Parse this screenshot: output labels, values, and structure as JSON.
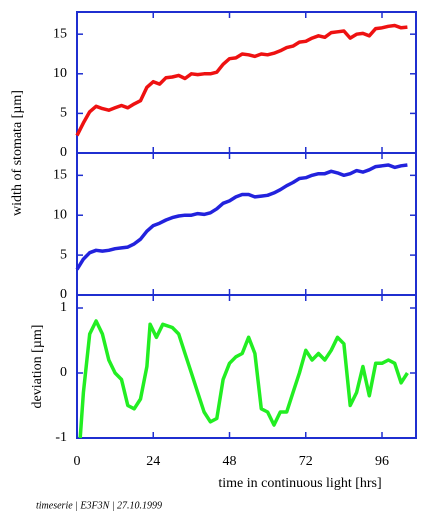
{
  "chart_data": [
    {
      "type": "line",
      "ylabel": "width of stomata [µm]",
      "color": "#ee1111",
      "x": [
        0,
        2,
        4,
        6,
        8,
        10,
        12,
        14,
        16,
        18,
        20,
        22,
        24,
        26,
        28,
        30,
        32,
        34,
        36,
        38,
        40,
        42,
        44,
        46,
        48,
        50,
        52,
        54,
        56,
        58,
        60,
        62,
        64,
        66,
        68,
        70,
        72,
        74,
        76,
        78,
        80,
        82,
        84,
        86,
        88,
        90,
        92,
        94,
        96,
        98,
        100,
        102,
        104
      ],
      "values": [
        2.2,
        3.8,
        5.2,
        5.9,
        5.6,
        5.4,
        5.7,
        6.0,
        5.7,
        6.2,
        6.6,
        8.3,
        9.0,
        8.7,
        9.5,
        9.6,
        9.8,
        9.4,
        10.0,
        9.9,
        10.0,
        10.0,
        10.2,
        11.2,
        11.9,
        12.0,
        12.5,
        12.4,
        12.2,
        12.5,
        12.4,
        12.6,
        12.9,
        13.3,
        13.5,
        14.0,
        14.1,
        14.5,
        14.8,
        14.6,
        15.2,
        15.3,
        15.4,
        14.5,
        15.0,
        15.1,
        14.8,
        15.7,
        15.8,
        16.0,
        16.1,
        15.8,
        15.9
      ],
      "xlim": [
        0,
        106.7
      ],
      "xticks": [
        0,
        24,
        48,
        72,
        96
      ],
      "ylim": [
        0,
        17.8
      ],
      "yticks": [
        0,
        5,
        10,
        15
      ]
    },
    {
      "type": "line",
      "color": "#2222dd",
      "x": [
        0,
        2,
        4,
        6,
        8,
        10,
        12,
        14,
        16,
        18,
        20,
        22,
        24,
        26,
        28,
        30,
        32,
        34,
        36,
        38,
        40,
        42,
        44,
        46,
        48,
        50,
        52,
        54,
        56,
        58,
        60,
        62,
        64,
        66,
        68,
        70,
        72,
        74,
        76,
        78,
        80,
        82,
        84,
        86,
        88,
        90,
        92,
        94,
        96,
        98,
        100,
        102,
        104
      ],
      "values": [
        3.2,
        4.5,
        5.3,
        5.6,
        5.5,
        5.6,
        5.8,
        5.9,
        6.0,
        6.4,
        7.0,
        8.0,
        8.7,
        9.0,
        9.4,
        9.7,
        9.9,
        10.0,
        10.0,
        10.2,
        10.1,
        10.3,
        10.8,
        11.5,
        11.8,
        12.3,
        12.6,
        12.6,
        12.3,
        12.4,
        12.5,
        12.8,
        13.2,
        13.7,
        14.1,
        14.6,
        14.7,
        15.0,
        15.2,
        15.2,
        15.5,
        15.3,
        15.0,
        15.2,
        15.6,
        15.4,
        15.7,
        16.1,
        16.2,
        16.3,
        16.0,
        16.2,
        16.3
      ],
      "xlim": [
        0,
        106.7
      ],
      "xticks": [
        0,
        24,
        48,
        72,
        96
      ],
      "ylim": [
        0,
        17.8
      ],
      "yticks": [
        0,
        5,
        10,
        15
      ]
    },
    {
      "type": "line",
      "ylabel": "deviation [µm]",
      "xlabel": "time in continuous light [hrs]",
      "color": "#22ee22",
      "x": [
        1,
        2,
        4,
        6,
        8,
        10,
        12,
        14,
        16,
        18,
        20,
        22,
        23,
        25,
        27,
        30,
        32,
        34,
        36,
        38,
        40,
        42,
        44,
        46,
        48,
        50,
        52,
        54,
        56,
        58,
        60,
        62,
        64,
        66,
        68,
        70,
        72,
        74,
        76,
        78,
        80,
        82,
        84,
        86,
        88,
        90,
        92,
        94,
        96,
        98,
        100,
        102,
        104
      ],
      "values": [
        -1.0,
        -0.3,
        0.6,
        0.8,
        0.6,
        0.2,
        0.0,
        -0.1,
        -0.5,
        -0.55,
        -0.4,
        0.1,
        0.75,
        0.55,
        0.75,
        0.7,
        0.6,
        0.3,
        0.0,
        -0.3,
        -0.6,
        -0.75,
        -0.7,
        -0.1,
        0.15,
        0.25,
        0.3,
        0.55,
        0.3,
        -0.55,
        -0.6,
        -0.8,
        -0.6,
        -0.6,
        -0.3,
        0.0,
        0.35,
        0.2,
        0.3,
        0.2,
        0.35,
        0.55,
        0.45,
        -0.5,
        -0.3,
        0.1,
        -0.35,
        0.15,
        0.15,
        0.2,
        0.15,
        -0.15,
        0.0
      ],
      "xlim": [
        0,
        106.7
      ],
      "xticks": [
        0,
        24,
        48,
        72,
        96
      ],
      "ylim": [
        -1,
        1.2
      ],
      "yticks": [
        -1,
        0,
        1
      ]
    }
  ],
  "footer": "timeserie | E3F3N | 27.10.1999"
}
